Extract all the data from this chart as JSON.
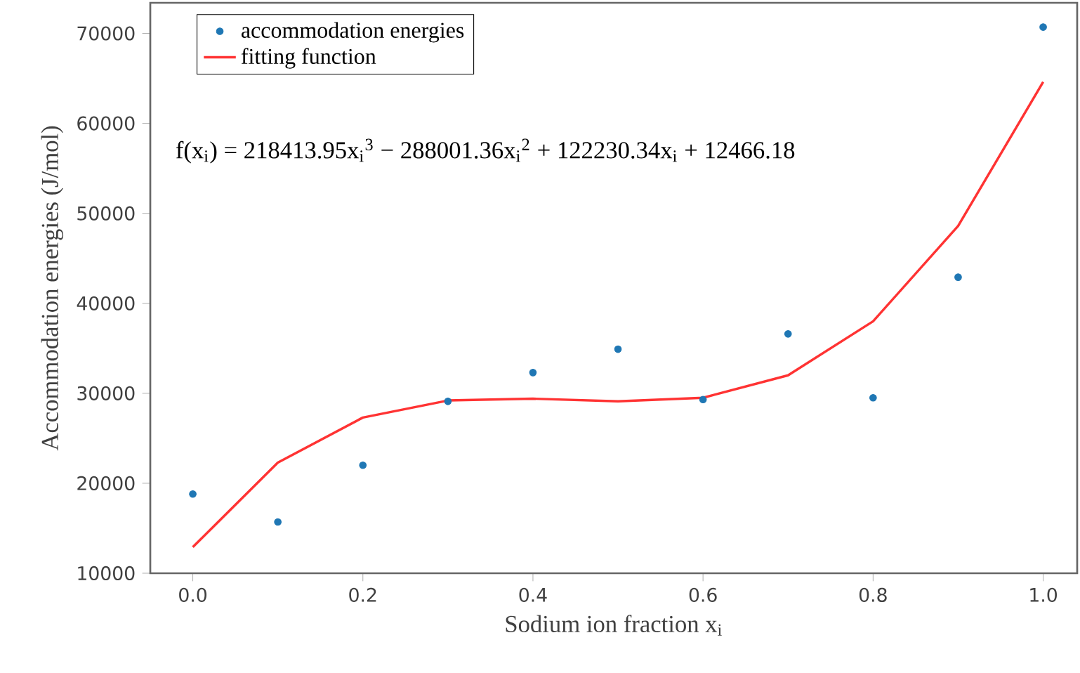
{
  "chart_data": {
    "type": "scatter",
    "xlabel": "Sodium ion fraction x$_{i}$",
    "ylabel": "Accommodation energies (J/mol)",
    "annotations": [
      "f(x$_{i}$) = 218413.95x$_{i}$$^{3}$ − 288001.36x$_{i}$$^{2}$ + 122230.34x$_{i}$ + 12466.18"
    ],
    "xlim": [
      -0.05,
      1.04
    ],
    "ylim": [
      10000,
      73400
    ],
    "xticks": [
      {
        "value": 0,
        "label": "0.0"
      },
      0.2,
      0.4,
      0.6,
      0.8,
      {
        "value": 1,
        "label": "1.0"
      }
    ],
    "yticks": [
      10000,
      20000,
      30000,
      40000,
      50000,
      60000,
      70000
    ],
    "legend": "top left",
    "series": [
      {
        "name": "accommodation energies",
        "marker": "circle",
        "color": "#1f77b4",
        "x": [
          0,
          0.1,
          0.2,
          0.3,
          0.4,
          0.5,
          0.6,
          0.7,
          0.8,
          0.9,
          1.0
        ],
        "values": [
          18800,
          15700,
          22000,
          29100,
          32300,
          34900,
          29300,
          36600,
          29500,
          42900,
          70700
        ]
      },
      {
        "name": "fitting function",
        "type": "line",
        "color": "#ff3333",
        "x": [
          0,
          0.1,
          0.2,
          0.3,
          0.4,
          0.5,
          0.6,
          0.7,
          0.8,
          0.9,
          1.0
        ],
        "values": [
          12900,
          22300,
          27300,
          29200,
          29400,
          29100,
          29500,
          32000,
          38000,
          48600,
          64600
        ]
      }
    ]
  }
}
